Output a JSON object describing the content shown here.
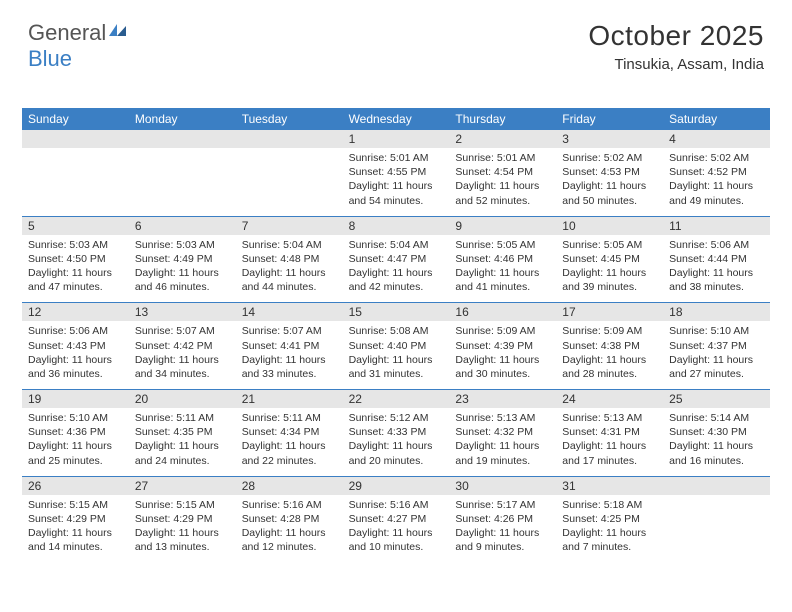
{
  "logo": {
    "text1": "General",
    "text2": "Blue"
  },
  "title": "October 2025",
  "location": "Tinsukia, Assam, India",
  "colors": {
    "header_bg": "#3b7fc4",
    "header_text": "#ffffff",
    "numrow_bg": "#e6e6e6",
    "body_text": "#333333",
    "bg": "#ffffff"
  },
  "dayNames": [
    "Sunday",
    "Monday",
    "Tuesday",
    "Wednesday",
    "Thursday",
    "Friday",
    "Saturday"
  ],
  "weeks": [
    {
      "nums": [
        "",
        "",
        "",
        "1",
        "2",
        "3",
        "4"
      ],
      "cells": [
        "",
        "",
        "",
        "Sunrise: 5:01 AM\nSunset: 4:55 PM\nDaylight: 11 hours and 54 minutes.",
        "Sunrise: 5:01 AM\nSunset: 4:54 PM\nDaylight: 11 hours and 52 minutes.",
        "Sunrise: 5:02 AM\nSunset: 4:53 PM\nDaylight: 11 hours and 50 minutes.",
        "Sunrise: 5:02 AM\nSunset: 4:52 PM\nDaylight: 11 hours and 49 minutes."
      ]
    },
    {
      "nums": [
        "5",
        "6",
        "7",
        "8",
        "9",
        "10",
        "11"
      ],
      "cells": [
        "Sunrise: 5:03 AM\nSunset: 4:50 PM\nDaylight: 11 hours and 47 minutes.",
        "Sunrise: 5:03 AM\nSunset: 4:49 PM\nDaylight: 11 hours and 46 minutes.",
        "Sunrise: 5:04 AM\nSunset: 4:48 PM\nDaylight: 11 hours and 44 minutes.",
        "Sunrise: 5:04 AM\nSunset: 4:47 PM\nDaylight: 11 hours and 42 minutes.",
        "Sunrise: 5:05 AM\nSunset: 4:46 PM\nDaylight: 11 hours and 41 minutes.",
        "Sunrise: 5:05 AM\nSunset: 4:45 PM\nDaylight: 11 hours and 39 minutes.",
        "Sunrise: 5:06 AM\nSunset: 4:44 PM\nDaylight: 11 hours and 38 minutes."
      ]
    },
    {
      "nums": [
        "12",
        "13",
        "14",
        "15",
        "16",
        "17",
        "18"
      ],
      "cells": [
        "Sunrise: 5:06 AM\nSunset: 4:43 PM\nDaylight: 11 hours and 36 minutes.",
        "Sunrise: 5:07 AM\nSunset: 4:42 PM\nDaylight: 11 hours and 34 minutes.",
        "Sunrise: 5:07 AM\nSunset: 4:41 PM\nDaylight: 11 hours and 33 minutes.",
        "Sunrise: 5:08 AM\nSunset: 4:40 PM\nDaylight: 11 hours and 31 minutes.",
        "Sunrise: 5:09 AM\nSunset: 4:39 PM\nDaylight: 11 hours and 30 minutes.",
        "Sunrise: 5:09 AM\nSunset: 4:38 PM\nDaylight: 11 hours and 28 minutes.",
        "Sunrise: 5:10 AM\nSunset: 4:37 PM\nDaylight: 11 hours and 27 minutes."
      ]
    },
    {
      "nums": [
        "19",
        "20",
        "21",
        "22",
        "23",
        "24",
        "25"
      ],
      "cells": [
        "Sunrise: 5:10 AM\nSunset: 4:36 PM\nDaylight: 11 hours and 25 minutes.",
        "Sunrise: 5:11 AM\nSunset: 4:35 PM\nDaylight: 11 hours and 24 minutes.",
        "Sunrise: 5:11 AM\nSunset: 4:34 PM\nDaylight: 11 hours and 22 minutes.",
        "Sunrise: 5:12 AM\nSunset: 4:33 PM\nDaylight: 11 hours and 20 minutes.",
        "Sunrise: 5:13 AM\nSunset: 4:32 PM\nDaylight: 11 hours and 19 minutes.",
        "Sunrise: 5:13 AM\nSunset: 4:31 PM\nDaylight: 11 hours and 17 minutes.",
        "Sunrise: 5:14 AM\nSunset: 4:30 PM\nDaylight: 11 hours and 16 minutes."
      ]
    },
    {
      "nums": [
        "26",
        "27",
        "28",
        "29",
        "30",
        "31",
        ""
      ],
      "cells": [
        "Sunrise: 5:15 AM\nSunset: 4:29 PM\nDaylight: 11 hours and 14 minutes.",
        "Sunrise: 5:15 AM\nSunset: 4:29 PM\nDaylight: 11 hours and 13 minutes.",
        "Sunrise: 5:16 AM\nSunset: 4:28 PM\nDaylight: 11 hours and 12 minutes.",
        "Sunrise: 5:16 AM\nSunset: 4:27 PM\nDaylight: 11 hours and 10 minutes.",
        "Sunrise: 5:17 AM\nSunset: 4:26 PM\nDaylight: 11 hours and 9 minutes.",
        "Sunrise: 5:18 AM\nSunset: 4:25 PM\nDaylight: 11 hours and 7 minutes.",
        ""
      ]
    }
  ]
}
